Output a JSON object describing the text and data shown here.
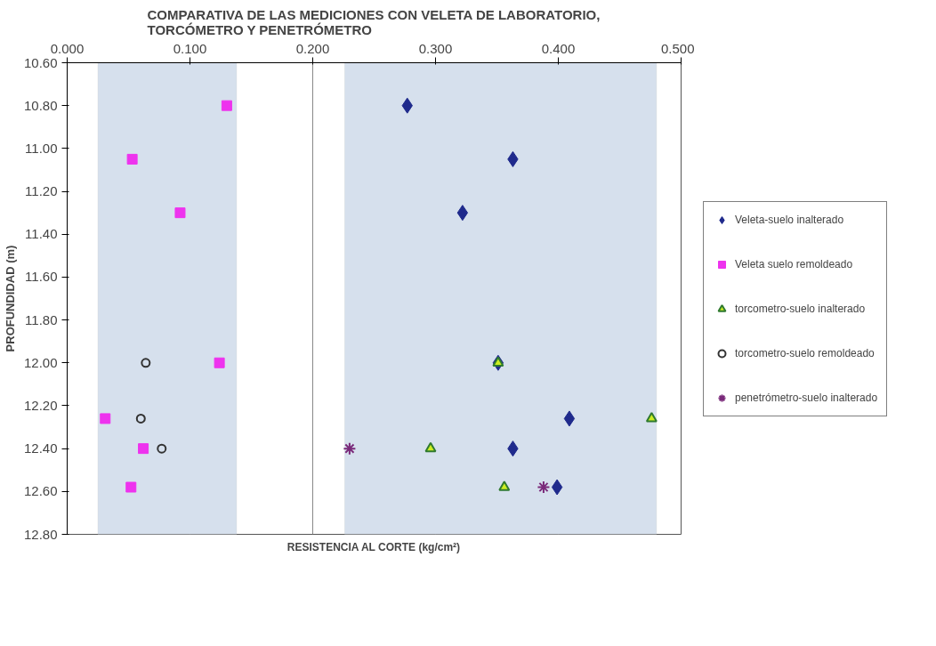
{
  "chart_data": {
    "type": "scatter",
    "title": "COMPARATIVA DE LAS MEDICIONES CON VELETA DE LABORATORIO,\nTORCÓMETRO Y PENETRÓMETRO",
    "xlabel": "RESISTENCIA AL CORTE (kg/cm²)",
    "ylabel": "PROFUNDIDAD (m)",
    "xlim": [
      0.0,
      0.5
    ],
    "ylim": [
      12.8,
      10.6
    ],
    "xticks": [
      {
        "value": 0.0,
        "label": "0.000"
      },
      {
        "value": 0.1,
        "label": "0.100"
      },
      {
        "value": 0.2,
        "label": "0.200"
      },
      {
        "value": 0.3,
        "label": "0.300"
      },
      {
        "value": 0.4,
        "label": "0.400"
      },
      {
        "value": 0.5,
        "label": "0.500"
      }
    ],
    "yticks": [
      {
        "value": 10.6,
        "label": "10.60"
      },
      {
        "value": 10.8,
        "label": "10.80"
      },
      {
        "value": 11.0,
        "label": "11.00"
      },
      {
        "value": 11.2,
        "label": "11.20"
      },
      {
        "value": 11.4,
        "label": "11.40"
      },
      {
        "value": 11.6,
        "label": "11.60"
      },
      {
        "value": 11.8,
        "label": "11.80"
      },
      {
        "value": 12.0,
        "label": "12.00"
      },
      {
        "value": 12.2,
        "label": "12.20"
      },
      {
        "value": 12.4,
        "label": "12.40"
      },
      {
        "value": 12.6,
        "label": "12.60"
      },
      {
        "value": 12.8,
        "label": "12.80"
      }
    ],
    "grid": "x",
    "legend": "right",
    "bands": [
      {
        "axis": "x",
        "from": 0.025,
        "to": 0.138,
        "color": "#d6e0ed"
      },
      {
        "axis": "x",
        "from": 0.226,
        "to": 0.48,
        "color": "#d6e0ed"
      }
    ],
    "series": [
      {
        "name": "Veleta-suelo inalterado",
        "color": "#1f2a8c",
        "marker": "diamond",
        "x": [
          0.277,
          0.363,
          0.322,
          0.351,
          0.409,
          0.363,
          0.399
        ],
        "values": [
          10.8,
          11.05,
          11.3,
          12.0,
          12.26,
          12.4,
          12.58
        ]
      },
      {
        "name": "Veleta suelo remoldeado",
        "color": "#ee33ee",
        "marker": "square",
        "x": [
          0.13,
          0.053,
          0.092,
          0.124,
          0.031,
          0.062,
          0.052
        ],
        "values": [
          10.8,
          11.05,
          11.3,
          12.0,
          12.26,
          12.4,
          12.58
        ]
      },
      {
        "name": "torcometro-suelo inalterado",
        "color": "#ccee22",
        "marker": "triangle",
        "x": [
          0.351,
          0.476,
          0.296,
          0.356
        ],
        "values": [
          12.0,
          12.26,
          12.4,
          12.58
        ]
      },
      {
        "name": "torcometro-suelo remoldeado",
        "color": "#333333",
        "marker": "circle",
        "x": [
          0.064,
          0.06,
          0.077
        ],
        "values": [
          12.0,
          12.26,
          12.4
        ]
      },
      {
        "name": "penetrómetro-suelo inalterado",
        "color": "#7a2a7a",
        "marker": "cross",
        "x": [
          0.23,
          0.388
        ],
        "values": [
          12.4,
          12.58
        ]
      }
    ]
  }
}
